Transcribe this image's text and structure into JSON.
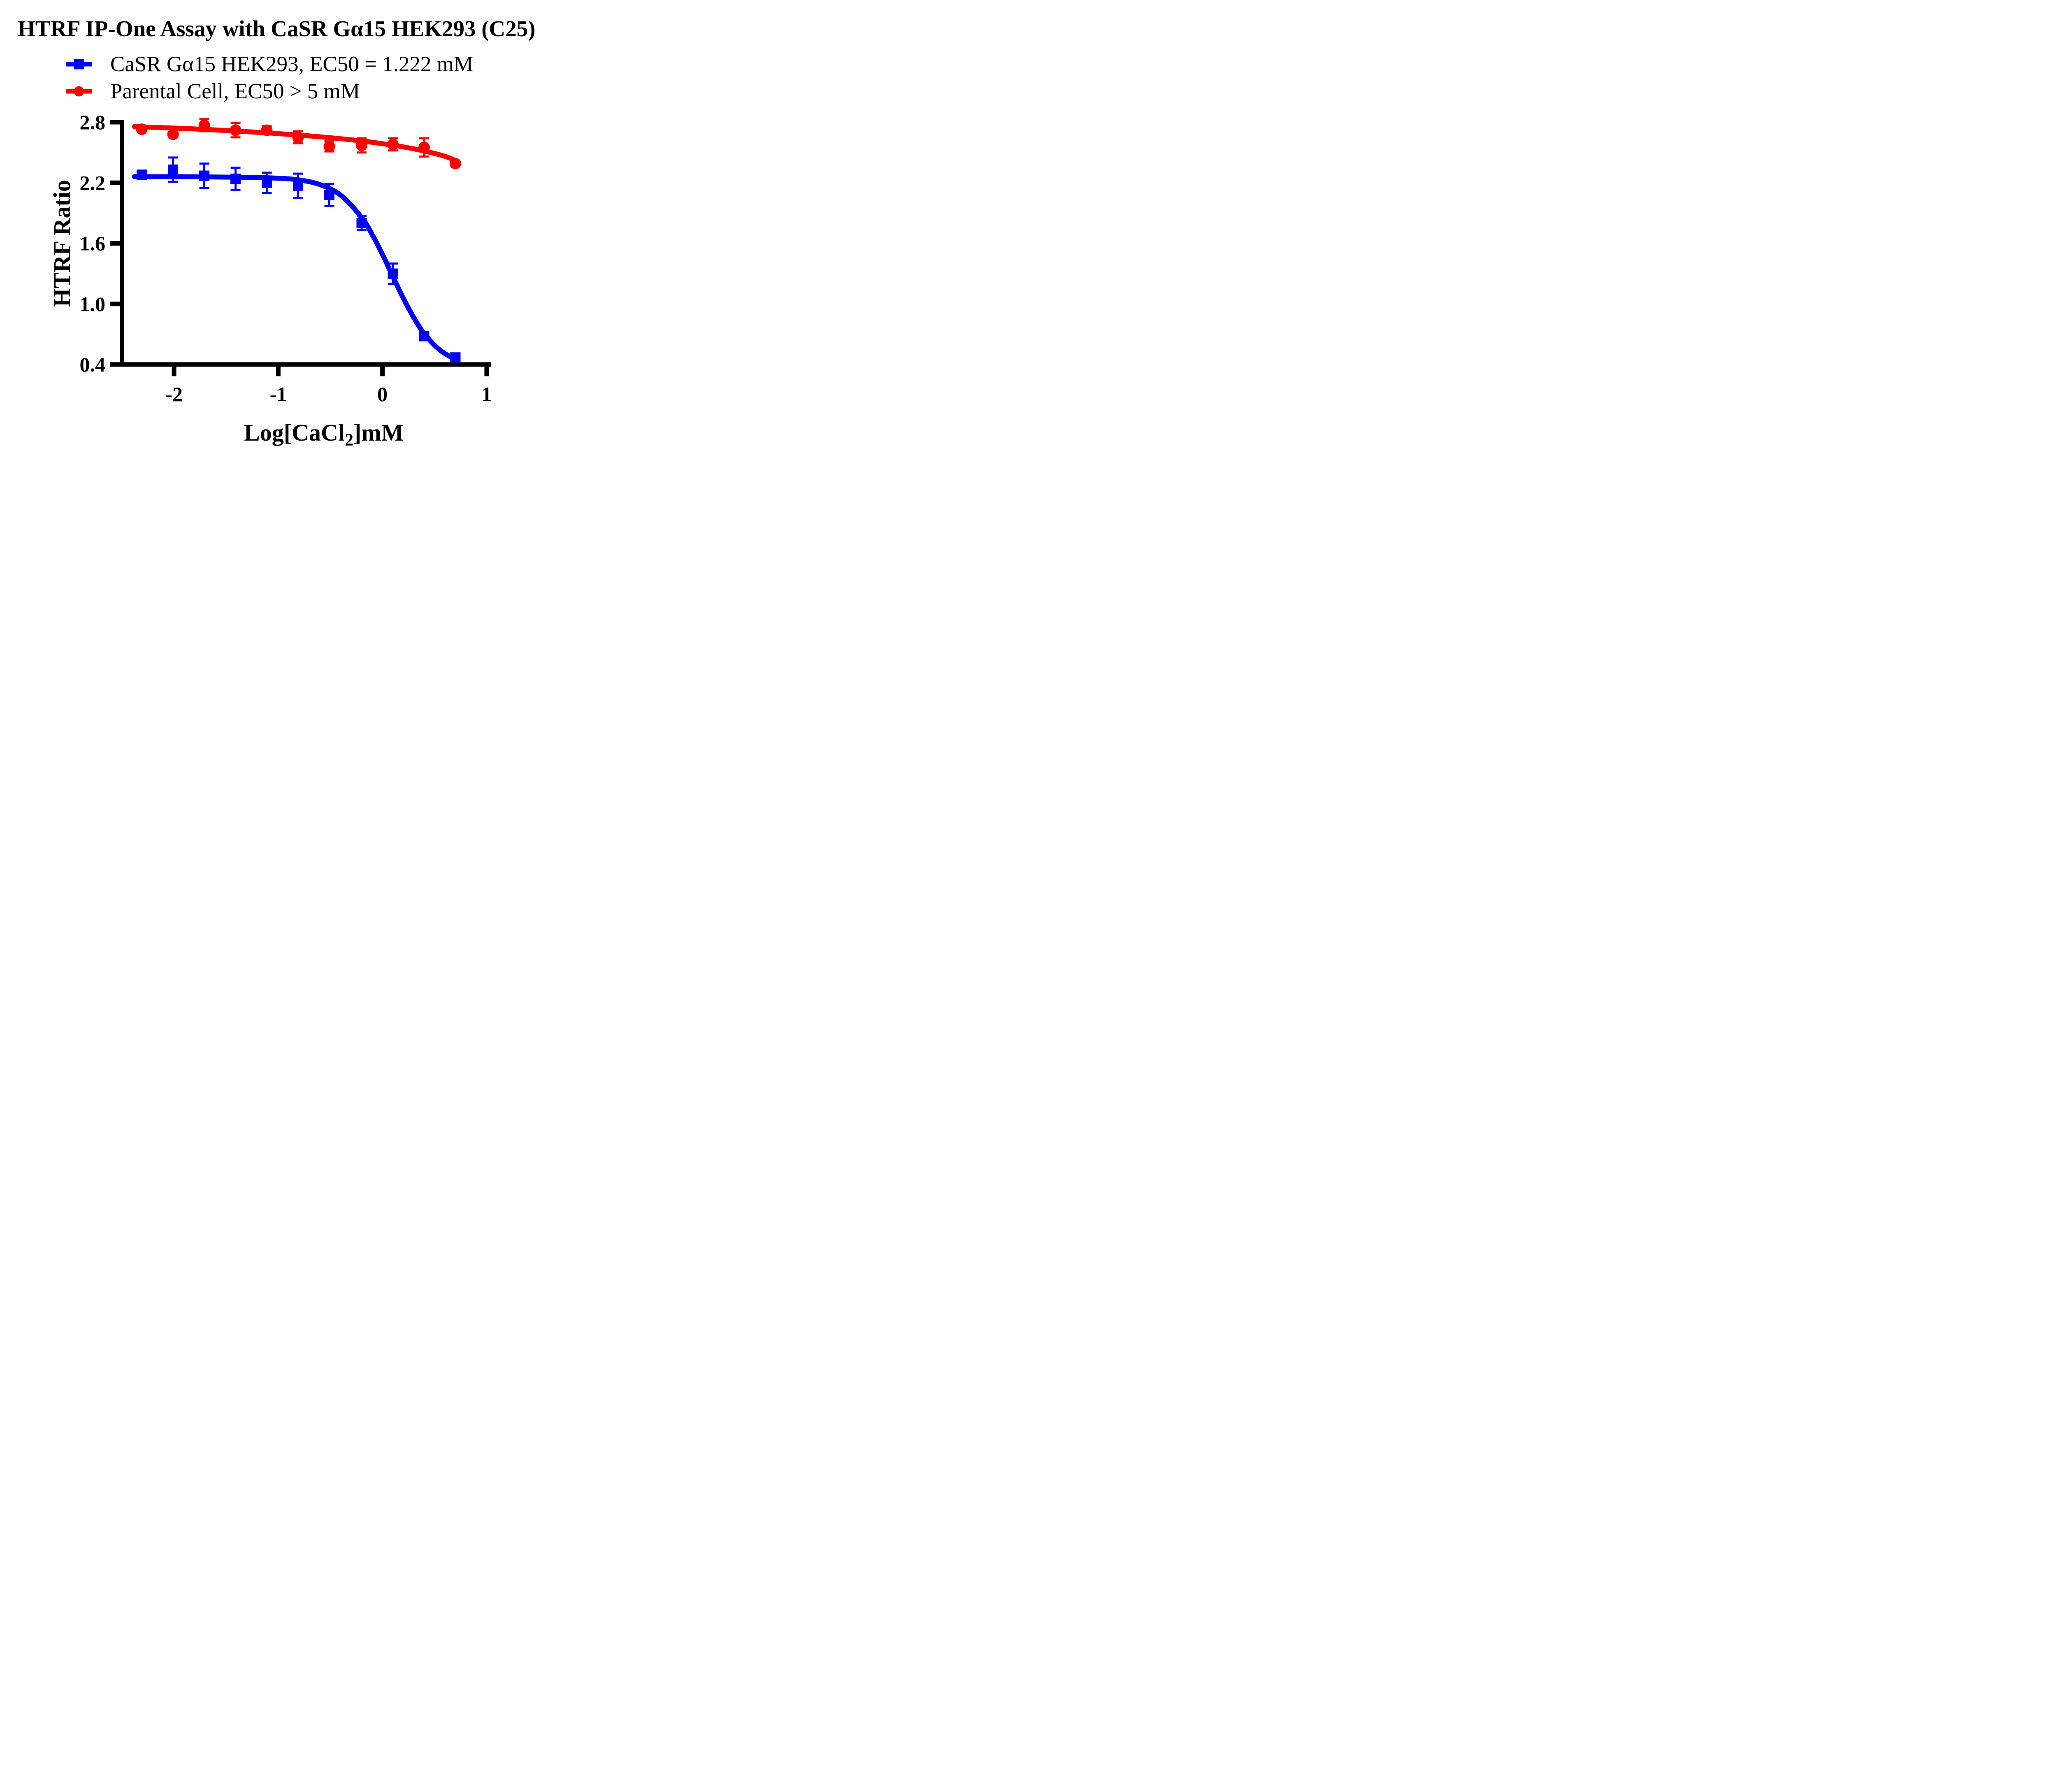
{
  "title": "HTRF IP-One Assay with CaSR Gα15 HEK293 (C25)",
  "legend": [
    {
      "label": "CaSR Gα15 HEK293,  EC50 = 1.222 mM",
      "color": "#0000FF",
      "marker": "square"
    },
    {
      "label": "Parental Cell,  EC50 > 5 mM",
      "color": "#FF0000",
      "marker": "circle"
    }
  ],
  "colors": {
    "background": "#FFFFFF",
    "axis": "#000000",
    "text": "#000000",
    "series_blue": "#0000FF",
    "series_red": "#FF0000"
  },
  "chart_data": {
    "type": "scatter",
    "subtype": "dose-response curves with error bars",
    "title": "HTRF IP-One Assay with CaSR Gα15 HEK293 (C25)",
    "xlabel": "Log[CaCl2]mM",
    "xlabel_parts": {
      "prefix": "Log[CaCl",
      "sub": "2",
      "suffix": "]mM"
    },
    "ylabel": "HTRF Ratio",
    "x_ticks": [
      -2,
      -1,
      0,
      1
    ],
    "y_ticks": [
      2.8,
      2.2,
      1.6,
      1.0,
      0.4
    ],
    "xlim": [
      -2.5,
      1.02
    ],
    "ylim": [
      0.4,
      2.8
    ],
    "grid": false,
    "legend_position": "top-left",
    "series": [
      {
        "name": "CaSR Gα15 HEK293",
        "ec50_label": "EC50 = 1.222 mM",
        "color": "#0000FF",
        "marker": "square",
        "x": [
          -2.31,
          -2.01,
          -1.71,
          -1.41,
          -1.11,
          -0.81,
          -0.51,
          -0.2,
          0.1,
          0.4,
          0.7
        ],
        "y": [
          2.28,
          2.33,
          2.27,
          2.24,
          2.2,
          2.17,
          2.08,
          1.8,
          1.3,
          0.68,
          0.47
        ],
        "yerr": [
          0,
          0.12,
          0.12,
          0.11,
          0.1,
          0.12,
          0.11,
          0.07,
          0.1,
          0,
          0
        ],
        "fit_curve": [
          [
            -2.38,
            2.26
          ],
          [
            -2.0,
            2.26
          ],
          [
            -1.6,
            2.257
          ],
          [
            -1.2,
            2.252
          ],
          [
            -1.0,
            2.245
          ],
          [
            -0.8,
            2.228
          ],
          [
            -0.6,
            2.182
          ],
          [
            -0.4,
            2.076
          ],
          [
            -0.2,
            1.856
          ],
          [
            -0.1,
            1.69
          ],
          [
            0.0,
            1.49
          ],
          [
            0.1,
            1.271
          ],
          [
            0.2,
            1.056
          ],
          [
            0.3,
            0.866
          ],
          [
            0.4,
            0.707
          ],
          [
            0.55,
            0.544
          ],
          [
            0.71,
            0.444
          ]
        ]
      },
      {
        "name": "Parental Cell",
        "ec50_label": "EC50 > 5 mM",
        "color": "#FF0000",
        "marker": "circle",
        "x": [
          -2.31,
          -2.01,
          -1.71,
          -1.41,
          -1.11,
          -0.81,
          -0.51,
          -0.2,
          0.1,
          0.4,
          0.7
        ],
        "y": [
          2.73,
          2.68,
          2.77,
          2.72,
          2.72,
          2.65,
          2.56,
          2.57,
          2.58,
          2.55,
          2.39
        ],
        "yerr": [
          0,
          0,
          0.06,
          0.07,
          0.04,
          0.06,
          0.05,
          0.07,
          0.06,
          0.09,
          0
        ],
        "fit_curve": [
          [
            -2.38,
            2.756
          ],
          [
            -2.0,
            2.742
          ],
          [
            -1.7,
            2.728
          ],
          [
            -1.4,
            2.712
          ],
          [
            -1.1,
            2.694
          ],
          [
            -0.8,
            2.672
          ],
          [
            -0.5,
            2.646
          ],
          [
            -0.2,
            2.614
          ],
          [
            0.1,
            2.572
          ],
          [
            0.3,
            2.536
          ],
          [
            0.5,
            2.49
          ],
          [
            0.62,
            2.455
          ],
          [
            0.72,
            2.41
          ]
        ]
      }
    ]
  }
}
